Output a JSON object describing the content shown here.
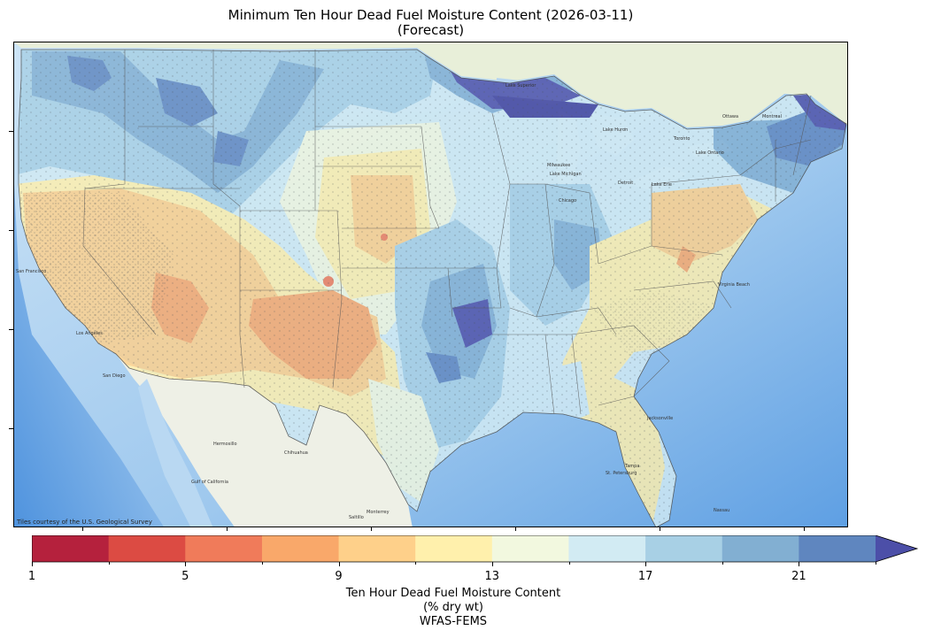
{
  "title": {
    "line1": "Minimum Ten Hour Dead Fuel Moisture Content (2026-03-11)",
    "line2": "(Forecast)"
  },
  "map": {
    "basemap_land": "#eef1e4",
    "basemap_water": "#cfe6f7",
    "basemap_ocean_deep": "#6aa8e6",
    "attribution": "Tiles courtesy of the U.S. Geological Survey",
    "place_labels": [
      "Hermosillo",
      "Chihuahua",
      "Monterrey",
      "Saltillo",
      "Gulf of California",
      "Jacksonville",
      "Tampa",
      "St. Petersburg",
      "Nassau",
      "Virginia Beach",
      "Milwaukee",
      "Chicago",
      "Detroit",
      "Toronto",
      "Ottawa",
      "Montreal",
      "Lake Superior",
      "Lake Michigan",
      "Lake Huron",
      "Lake Erie",
      "Lake Ontario",
      "San Francisco",
      "Los Angeles",
      "San Diego"
    ],
    "overlay": "ten-hour dead fuel moisture contour fill over CONUS"
  },
  "colorbar": {
    "levels": [
      1,
      3,
      5,
      7,
      9,
      11,
      13,
      15,
      17,
      19,
      21,
      23
    ],
    "colors": [
      "#b5213d",
      "#dc4b43",
      "#f07b5a",
      "#f9a86a",
      "#fed08a",
      "#fff0ac",
      "#f2f8df",
      "#d2ebf3",
      "#a8d0e5",
      "#82afd2",
      "#5f86bf",
      "#4c4fa8"
    ],
    "extend": "max",
    "tick_labels": [
      "1",
      "5",
      "9",
      "13",
      "17",
      "21"
    ],
    "label_line1": "Ten Hour Dead Fuel Moisture Content",
    "label_line2": "(% dry wt)",
    "label_line3": "WFAS-FEMS"
  }
}
